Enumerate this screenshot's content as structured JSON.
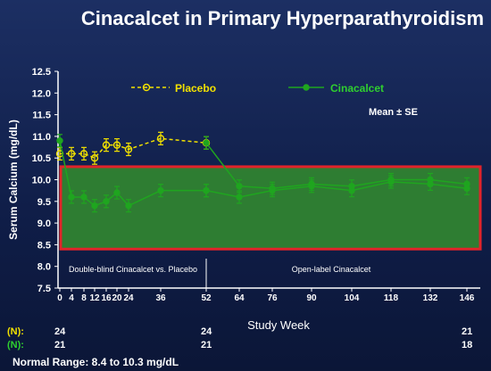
{
  "title": "Cinacalcet in Primary Hyperparathyroidism",
  "legend": {
    "placebo": "Placebo",
    "cinacalcet": "Cinacalcet",
    "mean_se": "Mean ± SE"
  },
  "regions": {
    "double_blind": "Double-blind Cinacalcet vs. Placebo",
    "open_label": "Open-label Cinacalcet"
  },
  "n_table": {
    "label_placebo": "(N):",
    "label_cinacalcet": "(N):",
    "placebo": [
      {
        "week": 0,
        "n": "24"
      },
      {
        "week": 52,
        "n": "24"
      },
      {
        "week": 146,
        "n": "21"
      }
    ],
    "cinacalcet": [
      {
        "week": 0,
        "n": "21"
      },
      {
        "week": 52,
        "n": "21"
      },
      {
        "week": 146,
        "n": "18"
      }
    ]
  },
  "normal_range_text": "Normal Range:  8.4 to 10.3 mg/dL",
  "colors": {
    "placebo": "#f2e100",
    "cinacalcet": "#1fa51f",
    "normal_band": "#2e7d32",
    "normal_border": "#e0242a",
    "background": "#1c2f63"
  },
  "chart_data": {
    "type": "line",
    "title": "Cinacalcet in Primary Hyperparathyroidism",
    "xlabel": "Study Week",
    "ylabel": "Serum Calcium (mg/dL)",
    "ylim": [
      7.5,
      12.5
    ],
    "yticks": [
      7.5,
      8.0,
      8.5,
      9.0,
      9.5,
      10.0,
      10.5,
      11.0,
      11.5,
      12.0,
      12.5
    ],
    "ytick_labels": [
      "7.5",
      "8.0",
      "8.5",
      "9.0",
      "9.5",
      "10.0",
      "10.5",
      "11.0",
      "11.5",
      "12.0",
      "12.5"
    ],
    "xtick_labels": [
      "0",
      "4",
      "8",
      "12",
      "16",
      "20",
      "24",
      "36",
      "52",
      "64",
      "76",
      "90",
      "104",
      "118",
      "132",
      "146"
    ],
    "normal_range": [
      8.4,
      10.3
    ],
    "series": [
      {
        "name": "Placebo",
        "style": "dashed-open-circle",
        "points": [
          {
            "x": "0",
            "y": 10.6
          },
          {
            "x": "4",
            "y": 10.6
          },
          {
            "x": "8",
            "y": 10.6
          },
          {
            "x": "12",
            "y": 10.5
          },
          {
            "x": "16",
            "y": 10.8
          },
          {
            "x": "20",
            "y": 10.8
          },
          {
            "x": "24",
            "y": 10.7
          },
          {
            "x": "36",
            "y": 10.95
          },
          {
            "x": "52",
            "y": 10.85
          }
        ]
      },
      {
        "name": "Cinacalcet",
        "style": "solid-filled-circle",
        "points": [
          {
            "x": "0",
            "y": 10.9
          },
          {
            "x": "4",
            "y": 9.6
          },
          {
            "x": "8",
            "y": 9.6
          },
          {
            "x": "12",
            "y": 9.4
          },
          {
            "x": "16",
            "y": 9.5
          },
          {
            "x": "20",
            "y": 9.7
          },
          {
            "x": "24",
            "y": 9.4
          },
          {
            "x": "36",
            "y": 9.75
          },
          {
            "x": "52",
            "y": 9.75
          }
        ]
      },
      {
        "name": "Cinacalcet",
        "style": "solid-filled-circle",
        "points": [
          {
            "x": "52",
            "y": 10.85
          },
          {
            "x": "64",
            "y": 9.85
          },
          {
            "x": "76",
            "y": 9.8
          },
          {
            "x": "90",
            "y": 9.9
          },
          {
            "x": "104",
            "y": 9.85
          },
          {
            "x": "118",
            "y": 10.0
          },
          {
            "x": "132",
            "y": 10.0
          },
          {
            "x": "146",
            "y": 9.9
          }
        ]
      },
      {
        "name": "Cinacalcet",
        "style": "solid-filled-circle",
        "points": [
          {
            "x": "52",
            "y": 9.75
          },
          {
            "x": "64",
            "y": 9.6
          },
          {
            "x": "76",
            "y": 9.75
          },
          {
            "x": "90",
            "y": 9.85
          },
          {
            "x": "104",
            "y": 9.75
          },
          {
            "x": "118",
            "y": 9.95
          },
          {
            "x": "132",
            "y": 9.9
          },
          {
            "x": "146",
            "y": 9.8
          }
        ]
      }
    ]
  }
}
